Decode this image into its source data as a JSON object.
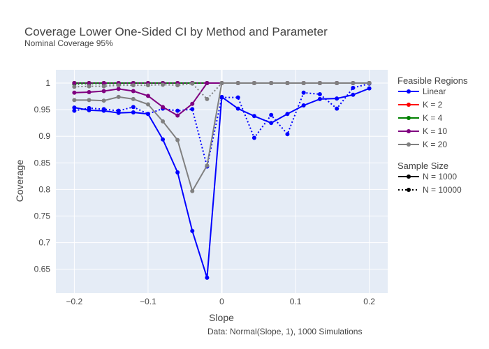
{
  "chart_data": {
    "type": "line",
    "title": "Coverage Lower One-Sided CI by Method and Parameter",
    "subtitle": "Nominal Coverage 95%",
    "xlabel": "Slope",
    "ylabel": "Coverage",
    "annotation": "Data: Normal(Slope, 1), 1000 Simulations",
    "xlim": [
      -0.225,
      0.225
    ],
    "ylim": [
      0.605,
      1.025
    ],
    "x_ticks": [
      -0.2,
      -0.1,
      0,
      0.1,
      0.2
    ],
    "x_tick_labels": [
      "−0.2",
      "−0.1",
      "0",
      "0.1",
      "0.2"
    ],
    "y_ticks": [
      0.65,
      0.7,
      0.75,
      0.8,
      0.85,
      0.9,
      0.95,
      1
    ],
    "y_tick_labels": [
      "0.65",
      "0.7",
      "0.75",
      "0.8",
      "0.85",
      "0.9",
      "0.95",
      "1"
    ],
    "grid": true,
    "legend": {
      "placement": "right",
      "groups": [
        {
          "title": "Feasible Regions",
          "items": [
            {
              "label": "Linear",
              "color": "#0000ff",
              "dash": "solid"
            },
            {
              "label": "K =  2",
              "color": "#ff0000",
              "dash": "solid"
            },
            {
              "label": "K =  4",
              "color": "#008000",
              "dash": "solid"
            },
            {
              "label": "K =  10",
              "color": "#800080",
              "dash": "solid"
            },
            {
              "label": "K =  20",
              "color": "#808080",
              "dash": "solid"
            }
          ]
        },
        {
          "title": "Sample Size",
          "items": [
            {
              "label": "N = 1000",
              "color": "#000000",
              "dash": "solid"
            },
            {
              "label": "N = 10000",
              "color": "#000000",
              "dash": "dot"
            }
          ]
        }
      ]
    },
    "series": [
      {
        "method": "Linear",
        "sample_size": "N = 1000",
        "color": "#0000ff",
        "dash": "solid",
        "x": [
          -0.2,
          -0.18,
          -0.16,
          -0.14,
          -0.12,
          -0.1,
          -0.08,
          -0.06,
          -0.04,
          -0.02,
          0,
          0.022,
          0.044,
          0.067,
          0.089,
          0.111,
          0.133,
          0.156,
          0.178,
          0.2
        ],
        "y": [
          0.954,
          0.949,
          0.948,
          0.944,
          0.945,
          0.942,
          0.894,
          0.832,
          0.722,
          0.634,
          0.974,
          0.952,
          0.938,
          0.925,
          0.942,
          0.958,
          0.97,
          0.971,
          0.978,
          0.99
        ]
      },
      {
        "method": "Linear",
        "sample_size": "N = 10000",
        "color": "#0000ff",
        "dash": "dot",
        "x": [
          -0.2,
          -0.18,
          -0.16,
          -0.14,
          -0.12,
          -0.1,
          -0.08,
          -0.06,
          -0.04,
          -0.02,
          0,
          0.022,
          0.044,
          0.067,
          0.089,
          0.111,
          0.133,
          0.156,
          0.178,
          0.2
        ],
        "y": [
          0.948,
          0.953,
          0.951,
          0.948,
          0.955,
          0.942,
          0.952,
          0.948,
          0.951,
          0.843,
          0.973,
          0.973,
          0.897,
          0.94,
          0.904,
          0.982,
          0.979,
          0.952,
          0.991,
          0.999
        ]
      },
      {
        "method": "K =  2",
        "sample_size": "N = 1000",
        "color": "#ff0000",
        "dash": "solid",
        "x": [
          -0.2,
          -0.18,
          -0.16,
          -0.14,
          -0.12,
          -0.1,
          -0.08,
          -0.06,
          -0.04,
          -0.02,
          0,
          0.022,
          0.044,
          0.067,
          0.089,
          0.111,
          0.133,
          0.156,
          0.178,
          0.2
        ],
        "y": [
          1,
          1,
          1,
          1,
          1,
          1,
          1,
          1,
          1,
          1,
          1,
          1,
          1,
          1,
          1,
          1,
          1,
          1,
          1,
          1
        ]
      },
      {
        "method": "K =  2",
        "sample_size": "N = 10000",
        "color": "#ff0000",
        "dash": "dot",
        "x": [
          -0.2,
          -0.18,
          -0.16,
          -0.14,
          -0.12,
          -0.1,
          -0.08,
          -0.06,
          -0.04,
          -0.02,
          0,
          0.022,
          0.044,
          0.067,
          0.089,
          0.111,
          0.133,
          0.156,
          0.178,
          0.2
        ],
        "y": [
          1,
          1,
          1,
          1,
          1,
          1,
          1,
          1,
          1,
          1,
          1,
          1,
          1,
          1,
          1,
          1,
          1,
          1,
          1,
          1
        ]
      },
      {
        "method": "K =  4",
        "sample_size": "N = 1000",
        "color": "#008000",
        "dash": "solid",
        "x": [
          -0.2,
          -0.18,
          -0.16,
          -0.14,
          -0.12,
          -0.1,
          -0.08,
          -0.06,
          -0.04,
          -0.02,
          0,
          0.022,
          0.044,
          0.067,
          0.089,
          0.111,
          0.133,
          0.156,
          0.178,
          0.2
        ],
        "y": [
          1,
          1,
          1,
          1,
          1,
          1,
          1,
          1,
          1,
          1,
          1,
          1,
          1,
          1,
          1,
          1,
          1,
          1,
          1,
          1
        ]
      },
      {
        "method": "K =  4",
        "sample_size": "N = 10000",
        "color": "#008000",
        "dash": "dot",
        "x": [
          -0.2,
          -0.18,
          -0.16,
          -0.14,
          -0.12,
          -0.1,
          -0.08,
          -0.06,
          -0.04,
          -0.02,
          0,
          0.022,
          0.044,
          0.067,
          0.089,
          0.111,
          0.133,
          0.156,
          0.178,
          0.2
        ],
        "y": [
          0.998,
          0.999,
          0.999,
          0.999,
          1,
          1,
          1,
          1,
          1,
          1,
          1,
          1,
          1,
          1,
          1,
          1,
          1,
          1,
          1,
          1
        ]
      },
      {
        "method": "K =  10",
        "sample_size": "N = 1000",
        "color": "#800080",
        "dash": "solid",
        "x": [
          -0.2,
          -0.18,
          -0.16,
          -0.14,
          -0.12,
          -0.1,
          -0.08,
          -0.06,
          -0.04,
          -0.02,
          0,
          0.022,
          0.044,
          0.067,
          0.089,
          0.111,
          0.133,
          0.156,
          0.178,
          0.2
        ],
        "y": [
          0.982,
          0.983,
          0.985,
          0.989,
          0.985,
          0.976,
          0.955,
          0.939,
          0.961,
          1,
          1,
          1,
          1,
          1,
          1,
          1,
          1,
          1,
          1,
          1
        ]
      },
      {
        "method": "K =  10",
        "sample_size": "N = 10000",
        "color": "#800080",
        "dash": "dot",
        "x": [
          -0.2,
          -0.18,
          -0.16,
          -0.14,
          -0.12,
          -0.1,
          -0.08,
          -0.06,
          -0.04,
          -0.02,
          0,
          0.022,
          0.044,
          0.067,
          0.089,
          0.111,
          0.133,
          0.156,
          0.178,
          0.2
        ],
        "y": [
          1,
          1,
          1,
          1,
          1,
          1,
          1,
          1,
          1,
          1,
          1,
          1,
          1,
          1,
          1,
          1,
          1,
          1,
          1,
          1
        ]
      },
      {
        "method": "K =  20",
        "sample_size": "N = 1000",
        "color": "#808080",
        "dash": "solid",
        "x": [
          -0.2,
          -0.18,
          -0.16,
          -0.14,
          -0.12,
          -0.1,
          -0.08,
          -0.06,
          -0.04,
          -0.02,
          0,
          0.022,
          0.044,
          0.067,
          0.089,
          0.111,
          0.133,
          0.156,
          0.178,
          0.2
        ],
        "y": [
          0.968,
          0.968,
          0.967,
          0.974,
          0.97,
          0.96,
          0.928,
          0.893,
          0.797,
          0.845,
          1,
          1,
          1,
          1,
          1,
          1,
          1,
          1,
          1,
          1
        ]
      },
      {
        "method": "K =  20",
        "sample_size": "N = 10000",
        "color": "#808080",
        "dash": "dot",
        "x": [
          -0.2,
          -0.18,
          -0.16,
          -0.14,
          -0.12,
          -0.1,
          -0.08,
          -0.06,
          -0.04,
          -0.02,
          0,
          0.022,
          0.044,
          0.067,
          0.089,
          0.111,
          0.133,
          0.156,
          0.178,
          0.2
        ],
        "y": [
          0.993,
          0.994,
          0.994,
          0.996,
          0.996,
          0.996,
          0.997,
          0.996,
          0.999,
          0.97,
          1,
          1,
          1,
          1,
          1,
          1,
          1,
          1,
          1,
          1
        ]
      }
    ]
  }
}
